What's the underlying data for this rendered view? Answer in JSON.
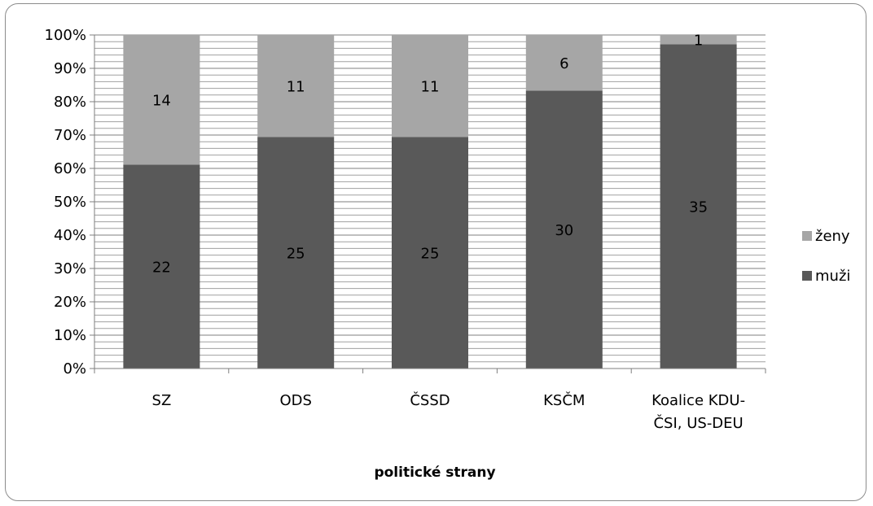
{
  "chart_data": {
    "type": "bar",
    "stacked": "percent",
    "categories": [
      "SZ",
      "ODS",
      "ČSSD",
      "KSČM",
      "Koalice KDU-ČSI, US-DEU"
    ],
    "category_lines": [
      [
        "SZ"
      ],
      [
        "ODS"
      ],
      [
        "ČSSD"
      ],
      [
        "KSČM"
      ],
      [
        "Koalice KDU-",
        "ČSI, US-DEU"
      ]
    ],
    "series": [
      {
        "name": "muži",
        "values": [
          22,
          25,
          25,
          30,
          35
        ],
        "color": "#595959"
      },
      {
        "name": "ženy",
        "values": [
          14,
          11,
          11,
          6,
          1
        ],
        "color": "#a6a6a6"
      }
    ],
    "xlabel": "politické strany",
    "ylabel": "",
    "ylim": [
      0,
      100
    ],
    "yticks": [
      "0%",
      "10%",
      "20%",
      "30%",
      "40%",
      "50%",
      "60%",
      "70%",
      "80%",
      "90%",
      "100%"
    ],
    "grid": true,
    "legend_position": "right",
    "legend_order": [
      "ženy",
      "muži"
    ]
  }
}
